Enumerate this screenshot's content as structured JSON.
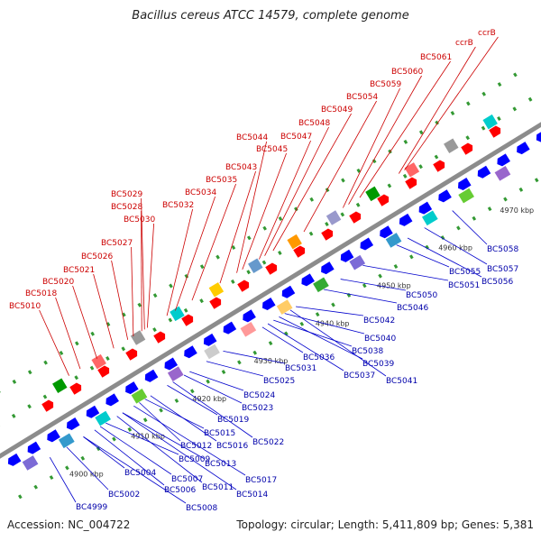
{
  "title": "Bacillus cereus ATCC 14579, complete genome",
  "footer": {
    "accession": "Accession: NC_004722",
    "summary": "Topology: circular; Length: 5,411,809 bp; Genes: 5,381"
  },
  "colors": {
    "plus_label": "#cc0000",
    "minus_label": "#0000aa",
    "plus_arrow": "#ff0000",
    "minus_arrow": "#0000ff",
    "backbone": "#8c8c8c",
    "tick": "#339933"
  },
  "ticks": [
    {
      "label": "4900 kbp"
    },
    {
      "label": "4910 kbp"
    },
    {
      "label": "4920 kbp"
    },
    {
      "label": "4930 kbp"
    },
    {
      "label": "4940 kbp"
    },
    {
      "label": "4950 kbp"
    },
    {
      "label": "4960 kbp"
    },
    {
      "label": "4970 kbp"
    }
  ],
  "top_labels": [
    "BC5010",
    "BC5018",
    "BC5020",
    "BC5021",
    "BC5026",
    "BC5027",
    "BC5030",
    "BC5028",
    "BC5029",
    "BC5032",
    "BC5034",
    "BC5035",
    "BC5043",
    "BC5045",
    "BC5044",
    "BC5047",
    "BC5048",
    "BC5049",
    "BC5054",
    "BC5059",
    "BC5060",
    "BC5061",
    "ccrB",
    "ccrB"
  ],
  "bottom_labels": [
    "BC4999",
    "BC5002",
    "BC5008",
    "BC5004",
    "BC5006",
    "BC5007",
    "BC5009",
    "BC5011",
    "BC5014",
    "BC5013",
    "BC5017",
    "BC5012",
    "BC5015",
    "BC5016",
    "BC5019",
    "BC5022",
    "BC5023",
    "BC5024",
    "BC5025",
    "BC5031",
    "BC5036",
    "BC5037",
    "BC5038",
    "BC5039",
    "BC5040",
    "BC5041",
    "BC5042",
    "BC5046",
    "BC5050",
    "BC5051",
    "BC5055",
    "BC5056",
    "BC5057",
    "BC5058"
  ]
}
